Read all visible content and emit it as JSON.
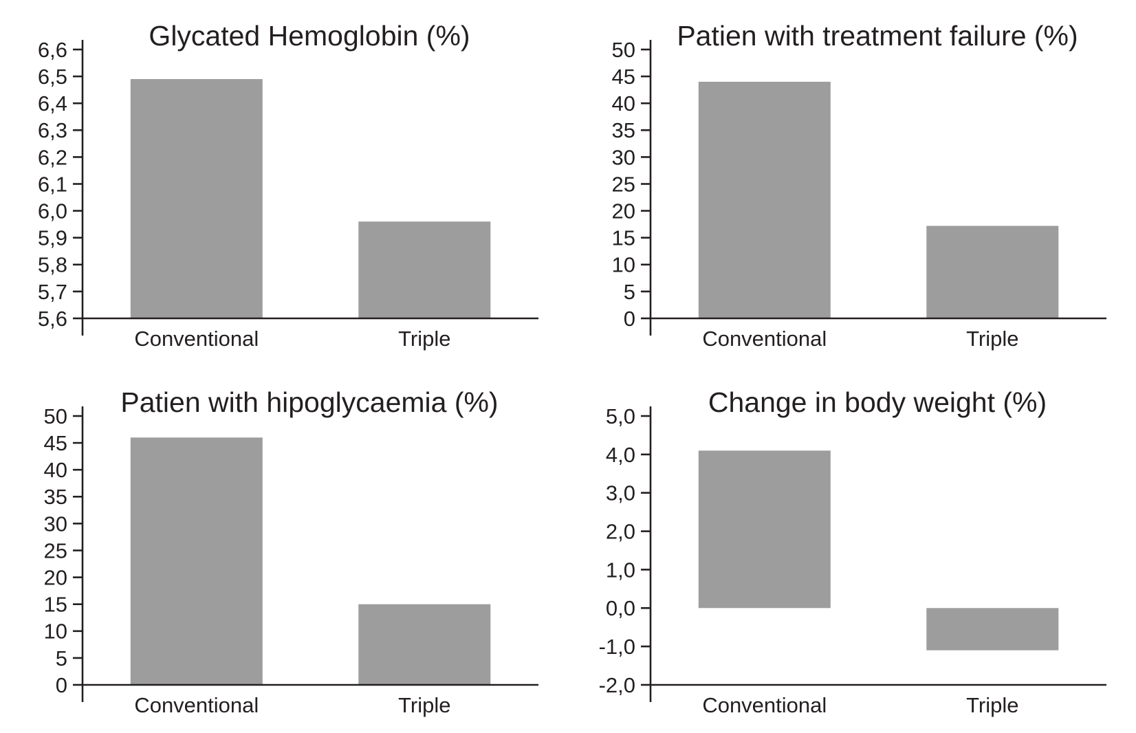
{
  "figure": {
    "background": "#ffffff",
    "bar_color": "#9d9d9d",
    "axis_color": "#231f20",
    "text_color": "#231f20"
  },
  "chart_data": [
    {
      "type": "bar",
      "title": "Glycated Hemoglobin (%)",
      "categories": [
        "Conventional",
        "Triple"
      ],
      "values": [
        6.49,
        5.96
      ],
      "ylim": [
        5.6,
        6.6
      ],
      "ytick_values": [
        5.6,
        5.7,
        5.8,
        5.9,
        6.0,
        6.1,
        6.2,
        6.3,
        6.4,
        6.5,
        6.6
      ],
      "ytick_labels": [
        "5,6",
        "5,7",
        "5,8",
        "5,9",
        "6,0",
        "6,1",
        "6,2",
        "6,3",
        "6,4",
        "6,5",
        "6,6"
      ],
      "bar_base": 5.6,
      "grid": false,
      "legend": "none",
      "xlabel": "",
      "ylabel": ""
    },
    {
      "type": "bar",
      "title": "Patien with treatment failure (%)",
      "categories": [
        "Conventional",
        "Triple"
      ],
      "values": [
        44,
        17.2
      ],
      "ylim": [
        0,
        50
      ],
      "ytick_values": [
        0,
        5,
        10,
        15,
        20,
        25,
        30,
        35,
        40,
        45,
        50
      ],
      "ytick_labels": [
        "0",
        "5",
        "10",
        "15",
        "20",
        "25",
        "30",
        "35",
        "40",
        "45",
        "50"
      ],
      "bar_base": 0,
      "grid": false,
      "legend": "none",
      "xlabel": "",
      "ylabel": ""
    },
    {
      "type": "bar",
      "title": "Patien with hipoglycaemia (%)",
      "categories": [
        "Conventional",
        "Triple"
      ],
      "values": [
        46,
        15
      ],
      "ylim": [
        0,
        50
      ],
      "ytick_values": [
        0,
        5,
        10,
        15,
        20,
        25,
        30,
        35,
        40,
        45,
        50
      ],
      "ytick_labels": [
        "0",
        "5",
        "10",
        "15",
        "20",
        "25",
        "30",
        "35",
        "40",
        "45",
        "50"
      ],
      "bar_base": 0,
      "grid": false,
      "legend": "none",
      "xlabel": "",
      "ylabel": ""
    },
    {
      "type": "bar",
      "title": "Change in body weight (%)",
      "categories": [
        "Conventional",
        "Triple"
      ],
      "values": [
        4.1,
        -1.1
      ],
      "ylim": [
        -2.0,
        5.0
      ],
      "ytick_values": [
        -2.0,
        -1.0,
        0.0,
        1.0,
        2.0,
        3.0,
        4.0,
        5.0
      ],
      "ytick_labels": [
        "-2,0",
        "-1,0",
        "0,0",
        "1,0",
        "2,0",
        "3,0",
        "4,0",
        "5,0"
      ],
      "bar_base": 0,
      "grid": false,
      "legend": "none",
      "xlabel": "",
      "ylabel": ""
    }
  ]
}
